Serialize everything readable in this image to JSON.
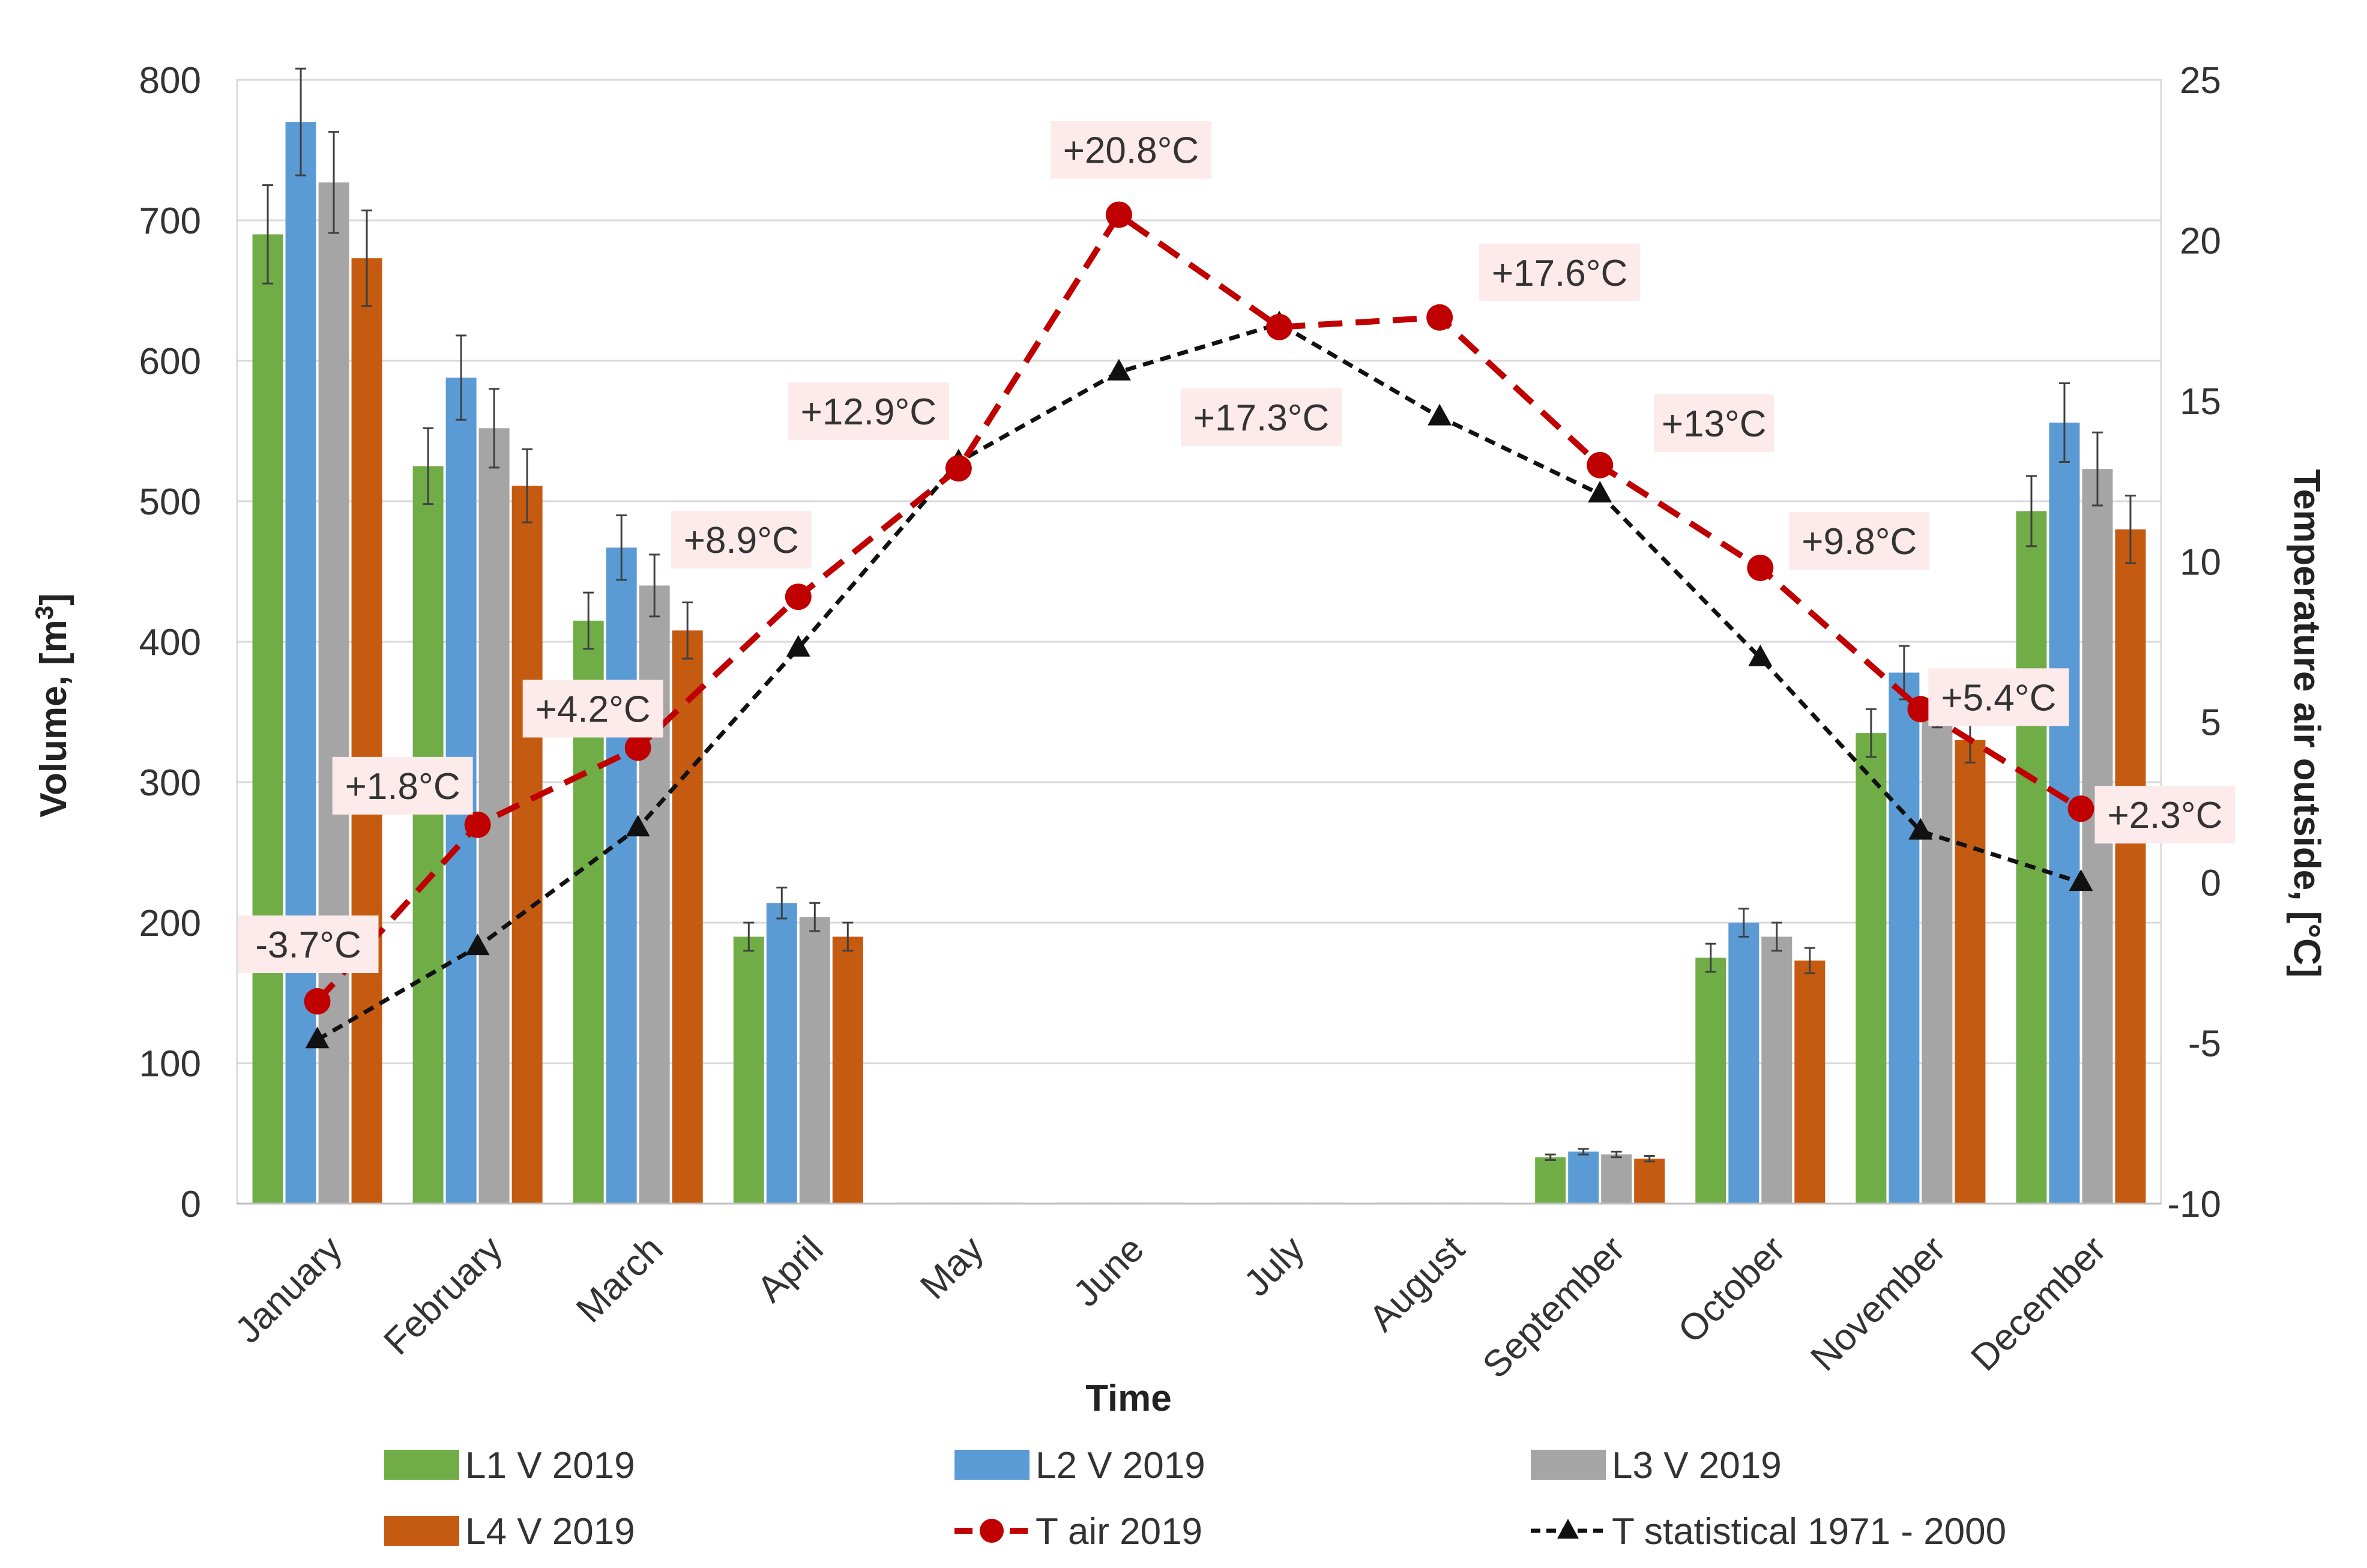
{
  "chart_data": {
    "type": "bar",
    "categories": [
      "January",
      "February",
      "March",
      "April",
      "May",
      "June",
      "July",
      "August",
      "September",
      "October",
      "November",
      "December"
    ],
    "xlabel": "Time",
    "ylabel": "Volume, [m3]",
    "ylabel_main": "Volume, [m",
    "ylabel_sup": "3",
    "ylabel_end": "]",
    "y2label": "Temperature air outside, [°C]",
    "ylim": [
      0,
      800
    ],
    "y2lim": [
      -10,
      25
    ],
    "yticks": [
      "0",
      "100",
      "200",
      "300",
      "400",
      "500",
      "600",
      "700",
      "800"
    ],
    "y2ticks": [
      "-10",
      "-5",
      "0",
      "5",
      "10",
      "15",
      "20",
      "25"
    ],
    "grid": true,
    "series": [
      {
        "name": "L1 V 2019",
        "kind": "bar",
        "color": "#70ad47",
        "values": [
          690,
          525,
          415,
          190,
          0,
          0,
          0,
          0,
          33,
          175,
          335,
          493
        ],
        "errors": [
          35,
          27,
          20,
          10,
          0,
          0,
          0,
          0,
          2,
          10,
          17,
          25
        ]
      },
      {
        "name": "L2 V 2019",
        "kind": "bar",
        "color": "#5b9bd5",
        "values": [
          770,
          588,
          467,
          214,
          0,
          0,
          0,
          0,
          37,
          200,
          378,
          556
        ],
        "errors": [
          38,
          30,
          23,
          11,
          0,
          0,
          0,
          0,
          2,
          10,
          19,
          28
        ]
      },
      {
        "name": "L3 V 2019",
        "kind": "bar",
        "color": "#a5a5a5",
        "values": [
          727,
          552,
          440,
          204,
          0,
          0,
          0,
          0,
          35,
          190,
          357,
          523
        ],
        "errors": [
          36,
          28,
          22,
          10,
          0,
          0,
          0,
          0,
          2,
          10,
          18,
          26
        ]
      },
      {
        "name": "L4 V 2019",
        "kind": "bar",
        "color": "#c55a11",
        "values": [
          673,
          511,
          408,
          190,
          0,
          0,
          0,
          0,
          32,
          173,
          330,
          480
        ],
        "errors": [
          34,
          26,
          20,
          10,
          0,
          0,
          0,
          0,
          2,
          9,
          16,
          24
        ]
      },
      {
        "name": "T air 2019",
        "kind": "line",
        "color": "#c00000",
        "values": [
          -3.7,
          1.8,
          4.2,
          8.9,
          12.9,
          20.8,
          17.3,
          17.6,
          13.0,
          9.8,
          5.4,
          2.3
        ]
      },
      {
        "name": "T statistical 1971 - 2000",
        "kind": "line",
        "color": "#111111",
        "values": [
          -4.9,
          -2.0,
          1.7,
          7.3,
          13.1,
          15.9,
          17.4,
          14.5,
          12.1,
          7.0,
          1.6,
          0.0
        ]
      }
    ],
    "data_labels": [
      "-3.7°C",
      "+1.8°C",
      "+4.2°C",
      "+8.9°C",
      "+12.9°C",
      "+20.8°C",
      "+17.3°C",
      "+17.6°C",
      "+13°C",
      "+9.8°C",
      "+5.4°C",
      "+2.3°C"
    ],
    "legend": [
      {
        "label": "L1 V 2019"
      },
      {
        "label": "L2 V 2019"
      },
      {
        "label": "L3 V 2019"
      },
      {
        "label": "L4 V 2019"
      },
      {
        "label": "T air 2019"
      },
      {
        "label": "T statistical 1971 - 2000"
      }
    ],
    "legend_position": "bottom"
  }
}
